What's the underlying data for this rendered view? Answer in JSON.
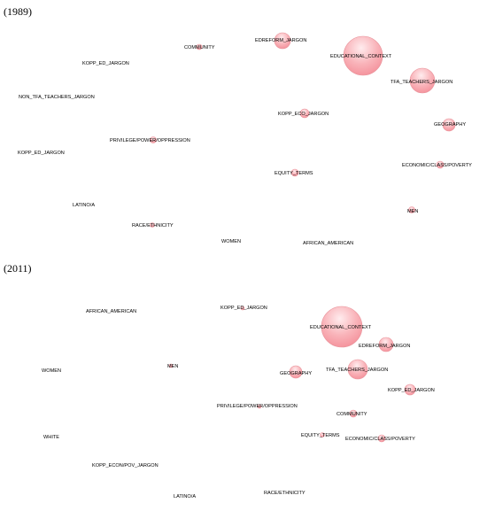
{
  "panels": [
    {
      "year": "(1989)",
      "nodes": [
        {
          "label": "COMMUNITY",
          "weight": 1,
          "bubble": true
        },
        {
          "label": "EDREFORM_JARGON",
          "weight": 3,
          "bubble": true
        },
        {
          "label": "EDUCATIONAL_CONTEXT",
          "weight": 10,
          "bubble": true
        },
        {
          "label": "KOPP_ED_JARGON",
          "weight": 0,
          "bubble": false
        },
        {
          "label": "TFA_TEACHERS_JARGON",
          "weight": 5,
          "bubble": true
        },
        {
          "label": "NON_TFA_TEACHERS_JARGON",
          "weight": 0,
          "bubble": false
        },
        {
          "label": "KOPP_ECO_JARGON",
          "weight": 1,
          "bubble": true
        },
        {
          "label": "GEOGRAPHY",
          "weight": 2,
          "bubble": true
        },
        {
          "label": "PRIVILEGE/POWER/OPPRESSION",
          "weight": 1,
          "bubble": true
        },
        {
          "label": "KOPP_ED_JARGON",
          "weight": 0,
          "bubble": false
        },
        {
          "label": "ECONOMIC/CLASS/POVERTY",
          "weight": 1,
          "bubble": true
        },
        {
          "label": "EQUITY_TERMS",
          "weight": 1,
          "bubble": true
        },
        {
          "label": "LATINO/A",
          "weight": 0,
          "bubble": false
        },
        {
          "label": "MEN",
          "weight": 1,
          "bubble": true
        },
        {
          "label": "RACE/ETHNICITY",
          "weight": 0.6,
          "bubble": true
        },
        {
          "label": "WOMEN",
          "weight": 0,
          "bubble": false
        },
        {
          "label": "AFRICAN_AMERICAN",
          "weight": 0,
          "bubble": false
        }
      ]
    },
    {
      "year": "(2011)",
      "nodes": [
        {
          "label": "KOPP_ED_JARGON",
          "weight": 0.6,
          "bubble": true
        },
        {
          "label": "AFRICAN_AMERICAN",
          "weight": 0,
          "bubble": false
        },
        {
          "label": "EDUCATIONAL_CONTEXT",
          "weight": 10,
          "bubble": true
        },
        {
          "label": "EDREFORM_JARGON",
          "weight": 2,
          "bubble": true
        },
        {
          "label": "WOMEN",
          "weight": 0,
          "bubble": false
        },
        {
          "label": "MEN",
          "weight": 0.6,
          "bubble": true
        },
        {
          "label": "GEOGRAPHY",
          "weight": 2,
          "bubble": true
        },
        {
          "label": "TFA_TEACHERS_JARGON",
          "weight": 4,
          "bubble": true
        },
        {
          "label": "KOPP_ED_JARGON",
          "weight": 1.6,
          "bubble": true
        },
        {
          "label": "PRIVILEGE/POWER/OPPRESSION",
          "weight": 0.6,
          "bubble": true
        },
        {
          "label": "COMMUNITY",
          "weight": 1,
          "bubble": true
        },
        {
          "label": "WHITE",
          "weight": 0,
          "bubble": false
        },
        {
          "label": "EQUITY_TERMS",
          "weight": 0.8,
          "bubble": true
        },
        {
          "label": "ECONOMIC/CLASS/POVERTY",
          "weight": 1,
          "bubble": true
        },
        {
          "label": "KOPP_ECON/POV_JARGON",
          "weight": 0,
          "bubble": false
        },
        {
          "label": "LATINO/A",
          "weight": 0,
          "bubble": false
        },
        {
          "label": "RACE/ETHNICITY",
          "weight": 0,
          "bubble": false
        }
      ]
    }
  ],
  "colors": {
    "bubble_fill": "#f7a2aa",
    "bubble_highlight": "#ffecee",
    "bubble_stroke": "#e8929a",
    "label": "#000000"
  }
}
